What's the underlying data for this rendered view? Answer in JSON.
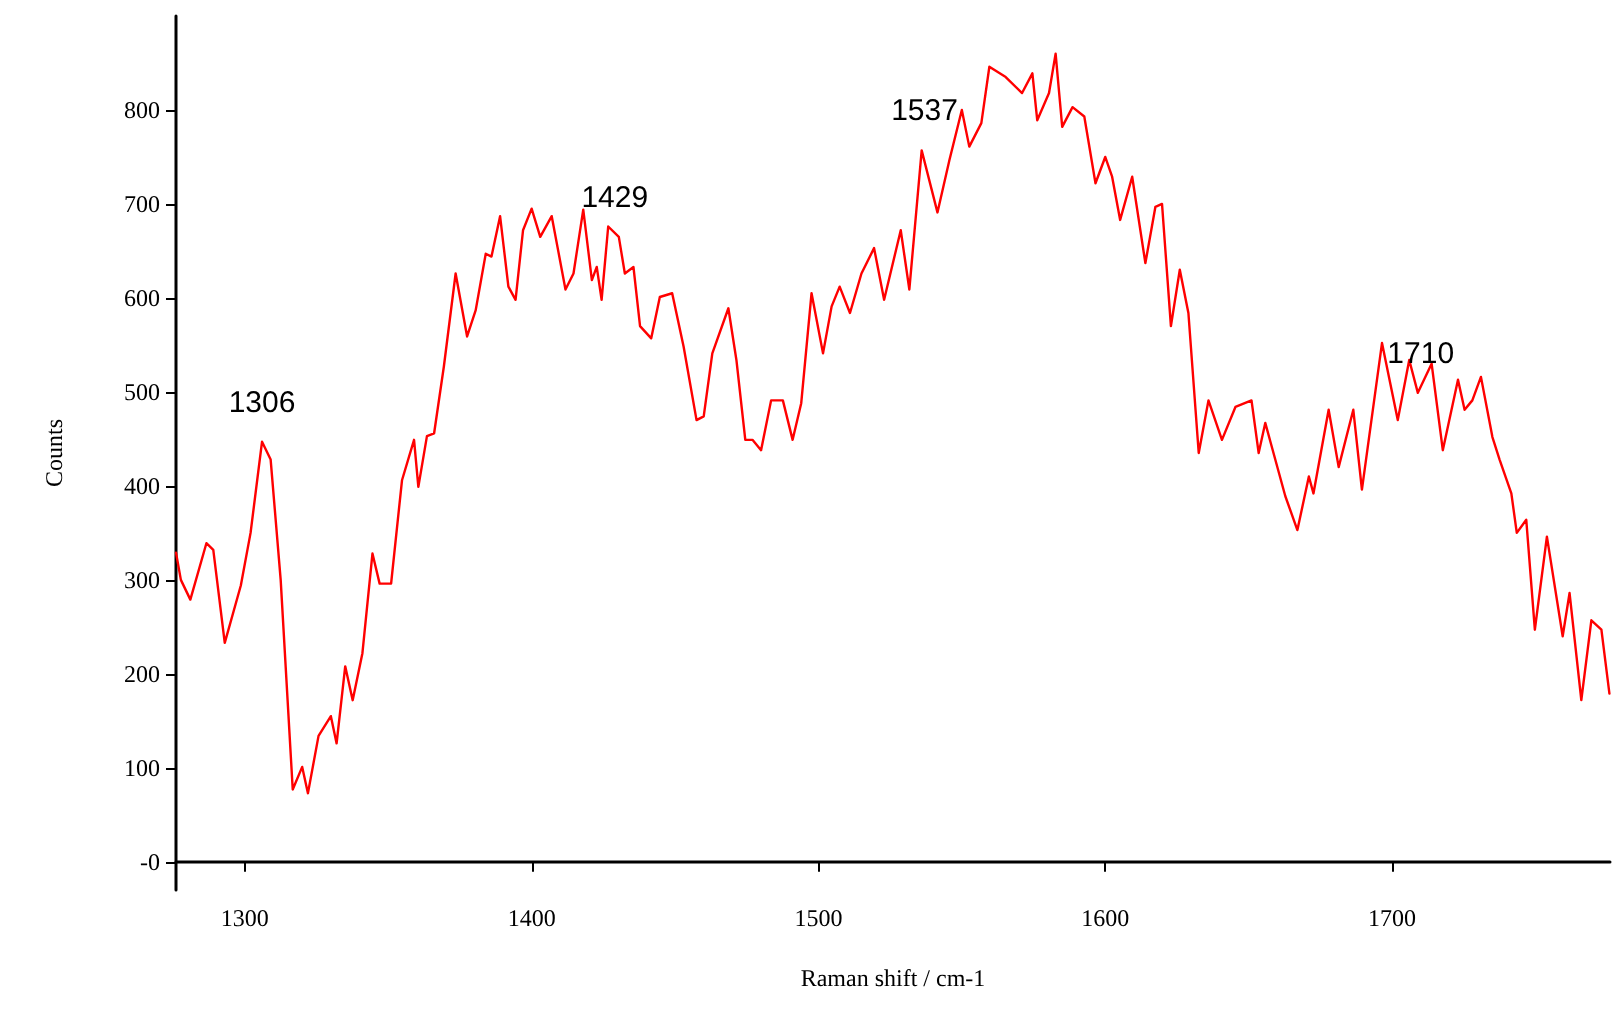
{
  "chart_data": {
    "type": "line",
    "xlabel": "Raman shift / cm-1",
    "ylabel": "Counts",
    "xlim": [
      1276,
      1776
    ],
    "xticks": [
      1300,
      1400,
      1500,
      1600,
      1700
    ],
    "ylim": [
      -30,
      900
    ],
    "yticks": [
      {
        "value": 0,
        "label": "-0"
      },
      100,
      200,
      300,
      400,
      500,
      600,
      700,
      800
    ],
    "marker": "none",
    "line_style": "solid",
    "annotations": [
      {
        "text": "1306",
        "x": 1306,
        "y": 447
      },
      {
        "text": "1429",
        "x": 1429,
        "y": 665
      },
      {
        "text": "1537",
        "x": 1537,
        "y": 757
      },
      {
        "text": "1710",
        "x": 1710,
        "y": 499
      }
    ],
    "series": [
      {
        "color": "#ff0000",
        "x": [
          1276,
          1277.7,
          1281,
          1286.6,
          1289,
          1293,
          1298.6,
          1302,
          1306,
          1309,
          1312.5,
          1316.7,
          1320,
          1322,
          1325.7,
          1330,
          1332,
          1335,
          1337.6,
          1341,
          1344.5,
          1347,
          1351,
          1354.8,
          1359,
          1360.5,
          1363.5,
          1366,
          1369.4,
          1373.5,
          1377.5,
          1380.5,
          1384,
          1386,
          1389,
          1391.9,
          1394.4,
          1397,
          1400,
          1403,
          1407,
          1411.8,
          1414.6,
          1418,
          1421,
          1422.7,
          1424.4,
          1426.7,
          1430.4,
          1432.5,
          1435.5,
          1437.8,
          1441.7,
          1444.7,
          1449,
          1453,
          1457.5,
          1460,
          1463,
          1468.6,
          1471.4,
          1474.5,
          1477,
          1480,
          1483.5,
          1487.6,
          1491,
          1494,
          1497.6,
          1501.6,
          1504.6,
          1507.4,
          1511,
          1515,
          1519.4,
          1522.9,
          1528.7,
          1531.7,
          1536,
          1541.5,
          1545.7,
          1550,
          1552.6,
          1556.8,
          1559.6,
          1565.3,
          1571,
          1574.6,
          1576.3,
          1580.4,
          1582.7,
          1585,
          1588.6,
          1592.7,
          1596.6,
          1600,
          1602.4,
          1605.2,
          1609.4,
          1614,
          1617.5,
          1619.8,
          1622.9,
          1626,
          1629,
          1632.6,
          1636,
          1640.7,
          1645.4,
          1651,
          1653.5,
          1655.8,
          1662.8,
          1667,
          1671,
          1672.6,
          1677.9,
          1681.4,
          1686.5,
          1689.5,
          1696.5,
          1702,
          1706,
          1709,
          1713.8,
          1717.7,
          1723,
          1725.3,
          1728,
          1731,
          1735,
          1737.5,
          1741.6,
          1743.5,
          1746.8,
          1749.8,
          1754,
          1759.5,
          1761.9,
          1766,
          1769.5,
          1773,
          1775.8
        ],
        "values": [
          329,
          300,
          279,
          339,
          332,
          233,
          294,
          350,
          447,
          428,
          300,
          77,
          101,
          73,
          134,
          155,
          126,
          208,
          172,
          222,
          328,
          296,
          296,
          406,
          449,
          399,
          453,
          456,
          527,
          626,
          559,
          587,
          647,
          644,
          687,
          612,
          598,
          672,
          695,
          665,
          687,
          609,
          626,
          694,
          619,
          633,
          598,
          676,
          665,
          626,
          633,
          570,
          557,
          601,
          605,
          548,
          470,
          474,
          541,
          589,
          534,
          449,
          449,
          438,
          491,
          491,
          449,
          488,
          605,
          541,
          591,
          612,
          584,
          626,
          653,
          598,
          672,
          609,
          757,
          691,
          747,
          800,
          761,
          786,
          846,
          835,
          818,
          839,
          789,
          818,
          860,
          782,
          803,
          793,
          722,
          750,
          729,
          683,
          729,
          637,
          697,
          700,
          570,
          630,
          584,
          435,
          491,
          449,
          484,
          491,
          435,
          467,
          389,
          353,
          410,
          392,
          481,
          420,
          481,
          396,
          552,
          470,
          534,
          499,
          530,
          438,
          513,
          481,
          491,
          516,
          452,
          428,
          392,
          350,
          364,
          247,
          346,
          240,
          286,
          172,
          257,
          247,
          179
        ]
      }
    ]
  }
}
